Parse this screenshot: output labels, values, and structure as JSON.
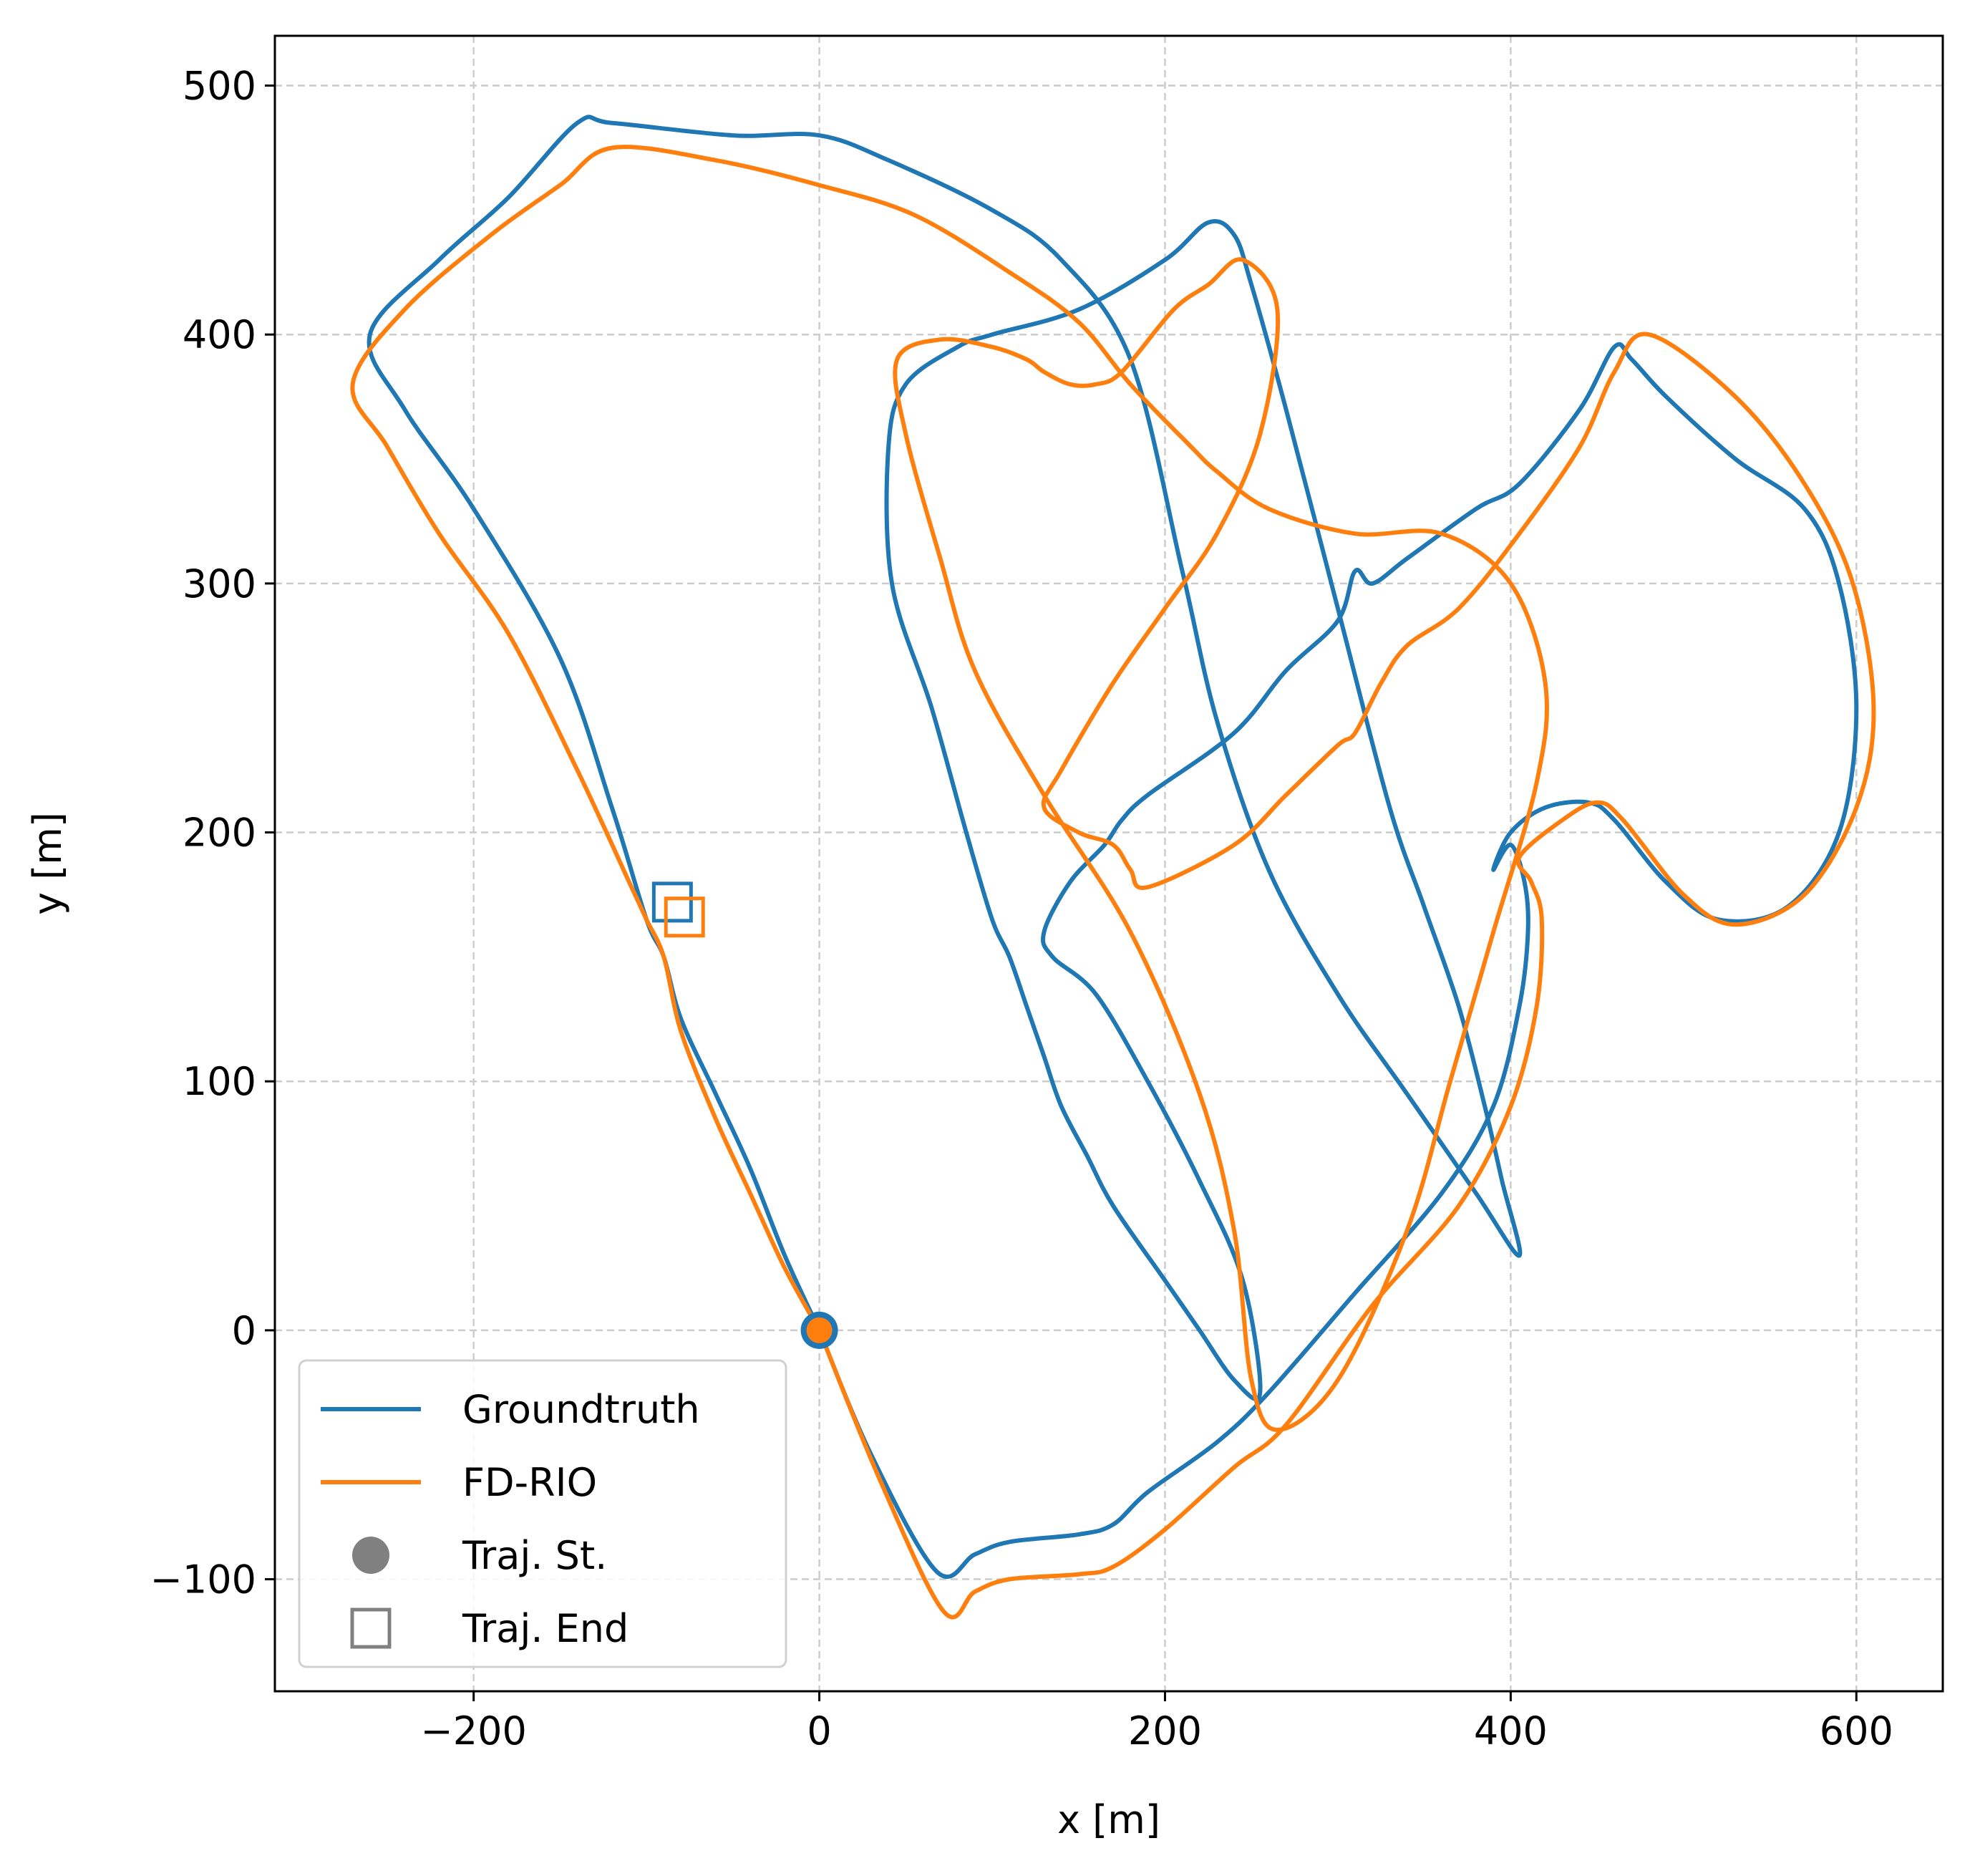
{
  "chart_data": {
    "type": "line",
    "title": "",
    "xlabel": "x [m]",
    "ylabel": "y [m]",
    "xlim": [
      -315,
      650
    ],
    "ylim": [
      -145,
      520
    ],
    "xticks": [
      -200,
      0,
      200,
      400,
      600
    ],
    "yticks": [
      -100,
      0,
      100,
      200,
      300,
      400,
      500
    ],
    "xtick_labels": [
      "−200",
      "0",
      "200",
      "400",
      "600"
    ],
    "ytick_labels": [
      "−100",
      "0",
      "100",
      "200",
      "300",
      "400",
      "500"
    ],
    "grid": true,
    "legend_position": "lower-left",
    "legend": [
      {
        "label": "Groundtruth",
        "kind": "line",
        "color": "#1f77b4"
      },
      {
        "label": "FD-RIO",
        "kind": "line",
        "color": "#ff7f0e"
      },
      {
        "label": "Traj. St.",
        "kind": "circle",
        "color": "#808080"
      },
      {
        "label": "Traj. End",
        "kind": "square",
        "color": "#808080"
      }
    ],
    "series": [
      {
        "name": "Groundtruth",
        "color": "#1f77b4",
        "x": [
          0,
          30,
          68,
          90,
          110,
          150,
          170,
          190,
          230,
          260,
          310,
          360,
          390,
          405,
          410,
          408,
          400,
          390,
          400,
          420,
          445,
          460,
          490,
          520,
          560,
          590,
          600,
          590,
          570,
          530,
          490,
          470,
          460,
          440,
          405,
          380,
          340,
          320,
          310,
          300,
          270,
          240,
          190,
          175,
          165,
          145,
          130,
          135,
          160,
          190,
          220,
          245,
          255,
          240,
          220,
          200,
          170,
          155,
          140,
          130,
          120,
          110,
          100,
          85,
          65,
          42,
          40,
          50,
          80,
          100,
          150,
          200,
          225,
          240,
          250,
          270,
          300,
          330,
          350,
          370,
          385,
          395,
          405,
          380,
          340,
          300,
          260,
          230,
          210,
          180,
          140,
          100,
          40,
          0,
          -50,
          -120,
          -140,
          -180,
          -220,
          -260,
          -240,
          -200,
          -150,
          -120,
          -100,
          -90,
          -80,
          -60,
          -40,
          -20,
          0
        ],
        "y": [
          0,
          -50,
          -97,
          -90,
          -85,
          -82,
          -78,
          -65,
          -45,
          -25,
          15,
          55,
          90,
          130,
          160,
          180,
          195,
          185,
          200,
          210,
          212,
          205,
          180,
          165,
          170,
          200,
          250,
          300,
          330,
          350,
          375,
          390,
          395,
          370,
          340,
          330,
          310,
          300,
          305,
          285,
          265,
          240,
          215,
          205,
          195,
          180,
          160,
          150,
          135,
          100,
          60,
          20,
          -25,
          -20,
          0,
          20,
          50,
          70,
          90,
          110,
          130,
          150,
          165,
          200,
          250,
          300,
          355,
          380,
          395,
          400,
          410,
          430,
          445,
          440,
          420,
          370,
          290,
          210,
          170,
          130,
          90,
          60,
          30,
          55,
          95,
          135,
          185,
          245,
          305,
          390,
          430,
          450,
          470,
          480,
          480,
          485,
          485,
          455,
          430,
          400,
          370,
          330,
          270,
          210,
          165,
          150,
          125,
          95,
          65,
          30,
          0
        ]
      },
      {
        "name": "FD-RIO",
        "color": "#ff7f0e",
        "x": [
          0,
          35,
          72,
          90,
          110,
          150,
          170,
          200,
          240,
          270,
          320,
          370,
          400,
          415,
          418,
          412,
          405,
          430,
          450,
          465,
          500,
          530,
          570,
          600,
          610,
          598,
          570,
          530,
          480,
          460,
          440,
          405,
          370,
          340,
          325,
          310,
          300,
          270,
          240,
          190,
          180,
          170,
          150,
          130,
          140,
          170,
          200,
          230,
          255,
          265,
          245,
          225,
          205,
          175,
          160,
          145,
          130,
          120,
          100,
          70,
          45,
          50,
          70,
          90,
          130,
          180,
          220,
          240,
          250,
          265,
          300,
          340,
          365,
          390,
          415,
          420,
          400,
          360,
          310,
          260,
          230,
          215,
          180,
          150,
          110,
          55,
          0,
          -60,
          -120,
          -150,
          -190,
          -240,
          -270,
          -250,
          -220,
          -180,
          -140,
          -110,
          -100,
          -90,
          -80,
          -60,
          -40,
          -20,
          0
        ],
        "y": [
          0,
          -60,
          -113,
          -105,
          -100,
          -98,
          -95,
          -80,
          -55,
          -38,
          10,
          50,
          90,
          130,
          165,
          180,
          190,
          205,
          212,
          205,
          175,
          163,
          175,
          210,
          250,
          300,
          340,
          375,
          400,
          385,
          355,
          320,
          290,
          275,
          260,
          240,
          235,
          215,
          195,
          178,
          185,
          195,
          200,
          210,
          225,
          260,
          290,
          320,
          360,
          410,
          430,
          420,
          410,
          385,
          380,
          380,
          385,
          390,
          395,
          398,
          390,
          360,
          310,
          265,
          215,
          160,
          95,
          40,
          -20,
          -40,
          -20,
          40,
          100,
          160,
          220,
          260,
          300,
          320,
          320,
          330,
          345,
          355,
          380,
          405,
          425,
          448,
          460,
          470,
          475,
          460,
          440,
          410,
          380,
          355,
          320,
          280,
          225,
          180,
          165,
          150,
          120,
          85,
          55,
          25,
          0
        ]
      }
    ],
    "markers": {
      "start": [
        {
          "series": "Groundtruth",
          "x": 0,
          "y": 0
        },
        {
          "series": "FD-RIO",
          "x": 0,
          "y": 0
        }
      ],
      "end": [
        {
          "series": "Groundtruth",
          "x": -85,
          "y": 172
        },
        {
          "series": "FD-RIO",
          "x": -78,
          "y": 166
        }
      ]
    }
  }
}
